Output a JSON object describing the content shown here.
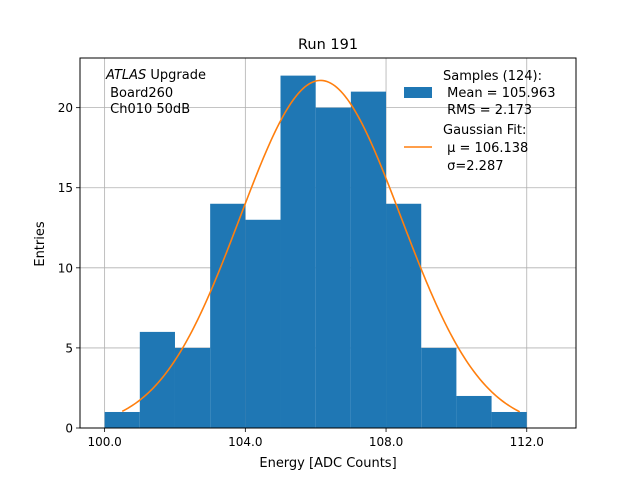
{
  "chart_data": {
    "type": "bar",
    "title": "Run 191",
    "xlabel": "Energy [ADC Counts]",
    "ylabel": "Entries",
    "xlim": [
      99.3,
      113.4
    ],
    "ylim": [
      0,
      23.1
    ],
    "xticks": [
      100.0,
      104.0,
      108.0,
      112.0
    ],
    "xtick_labels": [
      "100.0",
      "104.0",
      "108.0",
      "112.0"
    ],
    "yticks": [
      0,
      5,
      10,
      15,
      20
    ],
    "ytick_labels": [
      "0",
      "5",
      "10",
      "15",
      "20"
    ],
    "grid": true,
    "bin_edges": [
      100,
      101,
      102,
      103,
      104,
      105,
      106,
      107,
      108,
      109,
      110,
      111,
      112
    ],
    "counts": [
      1,
      6,
      5,
      14,
      13,
      22,
      20,
      21,
      14,
      5,
      2,
      1
    ],
    "hist_color": "#1f77b4",
    "fit": {
      "amplitude": 21.7,
      "mu": 106.138,
      "sigma": 2.287,
      "x_range": [
        100.5,
        111.8
      ],
      "color": "#ff7f0e"
    },
    "annotation": {
      "italic": "ATLAS",
      "rest": " Upgrade",
      "line2": " Board260",
      "line3": " Ch010 50dB"
    },
    "legend": {
      "placement": "top-right",
      "samples": {
        "line1": "Samples (124):",
        "line2": " Mean = 105.963",
        "line3": " RMS = 2.173"
      },
      "fit": {
        "line1": "Gaussian Fit:",
        "line2": " μ = 106.138",
        "line3": " σ=2.287"
      }
    }
  }
}
